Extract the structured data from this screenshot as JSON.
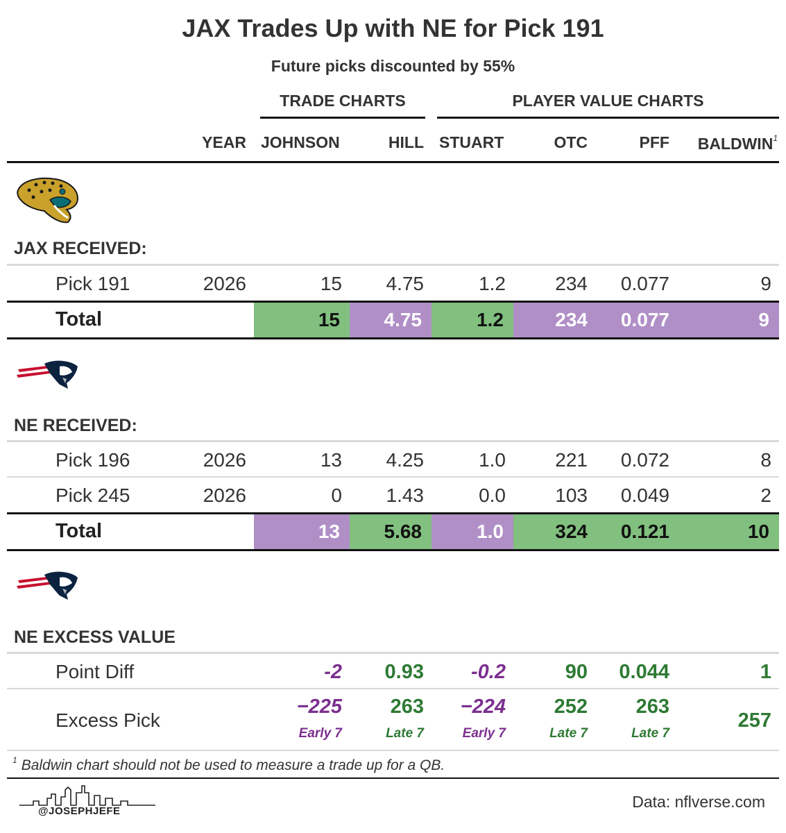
{
  "chart_data": {
    "type": "table",
    "title": "JAX Trades Up with NE for Pick 191",
    "subtitle": "Future picks discounted by 55%",
    "column_groups": [
      {
        "label": "TRADE CHARTS",
        "columns": [
          "JOHNSON",
          "HILL"
        ]
      },
      {
        "label": "PLAYER VALUE CHARTS",
        "columns": [
          "STUART",
          "OTC",
          "PFF",
          "BALDWIN"
        ]
      }
    ],
    "columns": [
      "YEAR",
      "JOHNSON",
      "HILL",
      "STUART",
      "OTC",
      "PFF",
      "BALDWIN"
    ],
    "baldwin_footnote_mark": "1",
    "jax": {
      "section_label": "JAX RECEIVED:",
      "rows": [
        {
          "label": "Pick 191",
          "year": "2026",
          "values": [
            "15",
            "4.75",
            "1.2",
            "234",
            "0.077",
            "9"
          ]
        }
      ],
      "total": {
        "label": "Total",
        "values": [
          "15",
          "4.75",
          "1.2",
          "234",
          "0.077",
          "9"
        ],
        "colors": [
          "green",
          "purple",
          "green",
          "purple",
          "purple",
          "purple"
        ]
      }
    },
    "ne": {
      "section_label": "NE RECEIVED:",
      "rows": [
        {
          "label": "Pick 196",
          "year": "2026",
          "values": [
            "13",
            "4.25",
            "1.0",
            "221",
            "0.072",
            "8"
          ]
        },
        {
          "label": "Pick 245",
          "year": "2026",
          "values": [
            "0",
            "1.43",
            "0.0",
            "103",
            "0.049",
            "2"
          ]
        }
      ],
      "total": {
        "label": "Total",
        "values": [
          "13",
          "5.68",
          "1.0",
          "324",
          "0.121",
          "10"
        ],
        "colors": [
          "purple",
          "green",
          "purple",
          "green",
          "green",
          "green"
        ]
      }
    },
    "excess": {
      "section_label": "NE EXCESS VALUE",
      "point_diff": {
        "label": "Point Diff",
        "values": [
          "-2",
          "0.93",
          "-0.2",
          "90",
          "0.044",
          "1"
        ]
      },
      "excess_pick": {
        "label": "Excess Pick",
        "values": [
          "−225",
          "263",
          "−224",
          "252",
          "263",
          "257"
        ],
        "rounds": [
          "Early 7",
          "Late 7",
          "Early 7",
          "Late 7",
          "Late 7",
          ""
        ]
      }
    },
    "footnote": "Baldwin chart should not be used to measure a trade up for a QB.",
    "footnote_mark": "1",
    "source": "Data: nflverse.com",
    "handle": "@JOSEPHJEFE"
  },
  "colors": {
    "green": "#81c07f",
    "purple": "#b08fc7",
    "negative_text": "#7b2f8f",
    "positive_text": "#2e7a34",
    "rule": "#111111",
    "light_rule": "#d9d9d9"
  },
  "icons": [
    "jaguars-logo-icon",
    "patriots-logo-icon",
    "patriots-logo-icon",
    "skyline-icon"
  ]
}
